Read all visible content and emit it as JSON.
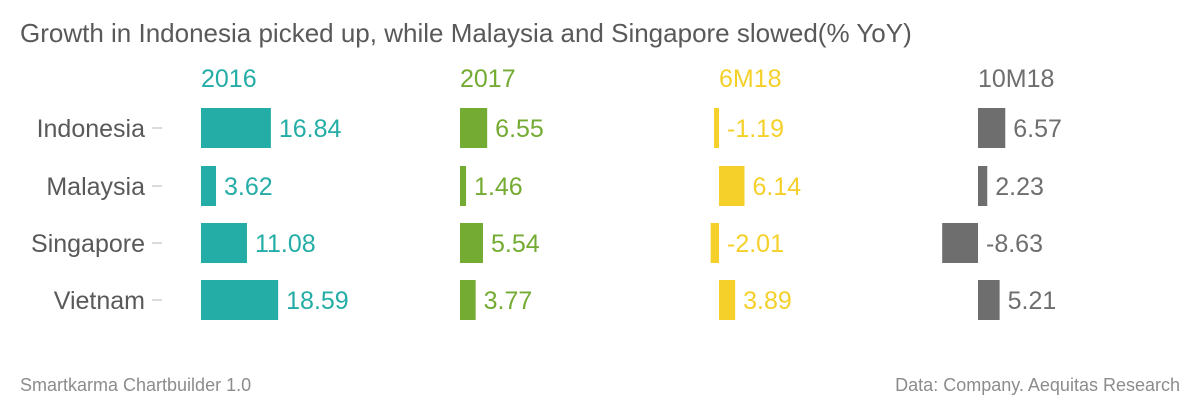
{
  "title": "Growth in Indonesia picked up, while Malaysia and Singapore slowed(% YoY)",
  "footer": {
    "source_tool": "Smartkarma Chartbuilder 1.0",
    "data_source": "Data: Company. Aequitas Research"
  },
  "chart_data": {
    "type": "bar",
    "orientation": "horizontal",
    "layout": "small-multiples",
    "categories": [
      "Indonesia",
      "Malaysia",
      "Singapore",
      "Vietnam"
    ],
    "series": [
      {
        "name": "2016",
        "color": "#24ada6",
        "values": [
          16.84,
          3.62,
          11.08,
          18.59
        ]
      },
      {
        "name": "2017",
        "color": "#74ab33",
        "values": [
          6.55,
          1.46,
          5.54,
          3.77
        ]
      },
      {
        "name": "6M18",
        "color": "#f5d02a",
        "values": [
          -1.19,
          6.14,
          -2.01,
          3.89
        ]
      },
      {
        "name": "10M18",
        "color": "#6e6e6e",
        "values": [
          6.57,
          2.23,
          -8.63,
          5.21
        ]
      }
    ],
    "value_labels": {
      "2016": [
        "16.84",
        "3.62",
        "11.08",
        "18.59"
      ],
      "2017": [
        "6.55",
        "1.46",
        "5.54",
        "3.77"
      ],
      "6M18": [
        "-1.19",
        "6.14",
        "-2.01",
        "3.89"
      ],
      "10M18": [
        "6.57",
        "2.23",
        "-8.63",
        "5.21"
      ]
    },
    "grid": false,
    "legend": "none"
  }
}
